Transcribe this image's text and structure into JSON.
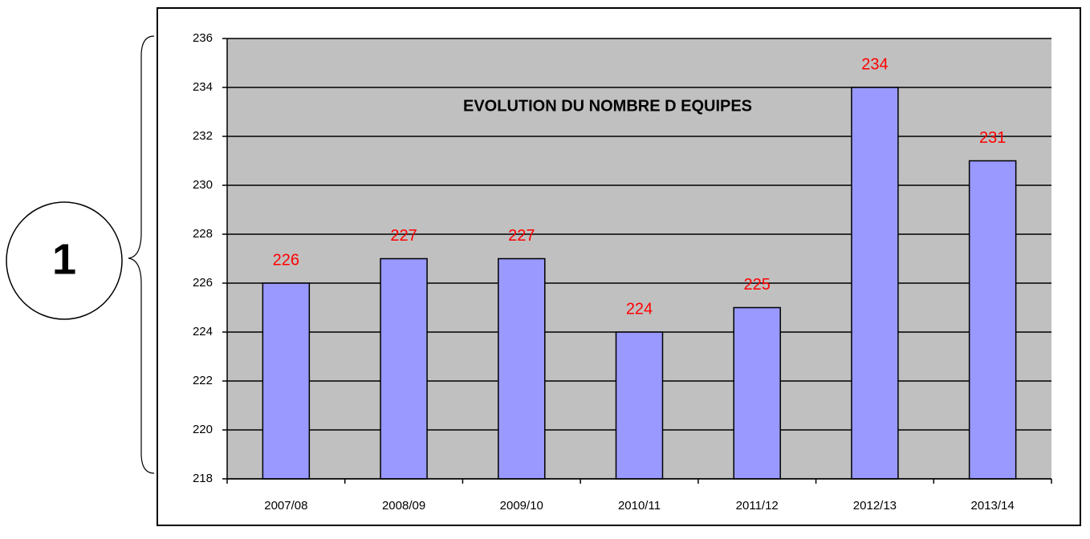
{
  "chart_data": {
    "type": "bar",
    "title": "EVOLUTION DU NOMBRE D EQUIPES",
    "annotation": "1",
    "categories": [
      "2007/08",
      "2008/09",
      "2009/10",
      "2010/11",
      "2011/12",
      "2012/13",
      "2013/14"
    ],
    "values": [
      226,
      227,
      227,
      224,
      225,
      234,
      231
    ],
    "color": "#9999ff",
    "label_color": "#ff0000",
    "plot_background": "#c0c0c0",
    "ylim": [
      218,
      236
    ],
    "yticks": [
      218,
      220,
      222,
      224,
      226,
      228,
      230,
      232,
      234,
      236
    ],
    "grid": true
  }
}
